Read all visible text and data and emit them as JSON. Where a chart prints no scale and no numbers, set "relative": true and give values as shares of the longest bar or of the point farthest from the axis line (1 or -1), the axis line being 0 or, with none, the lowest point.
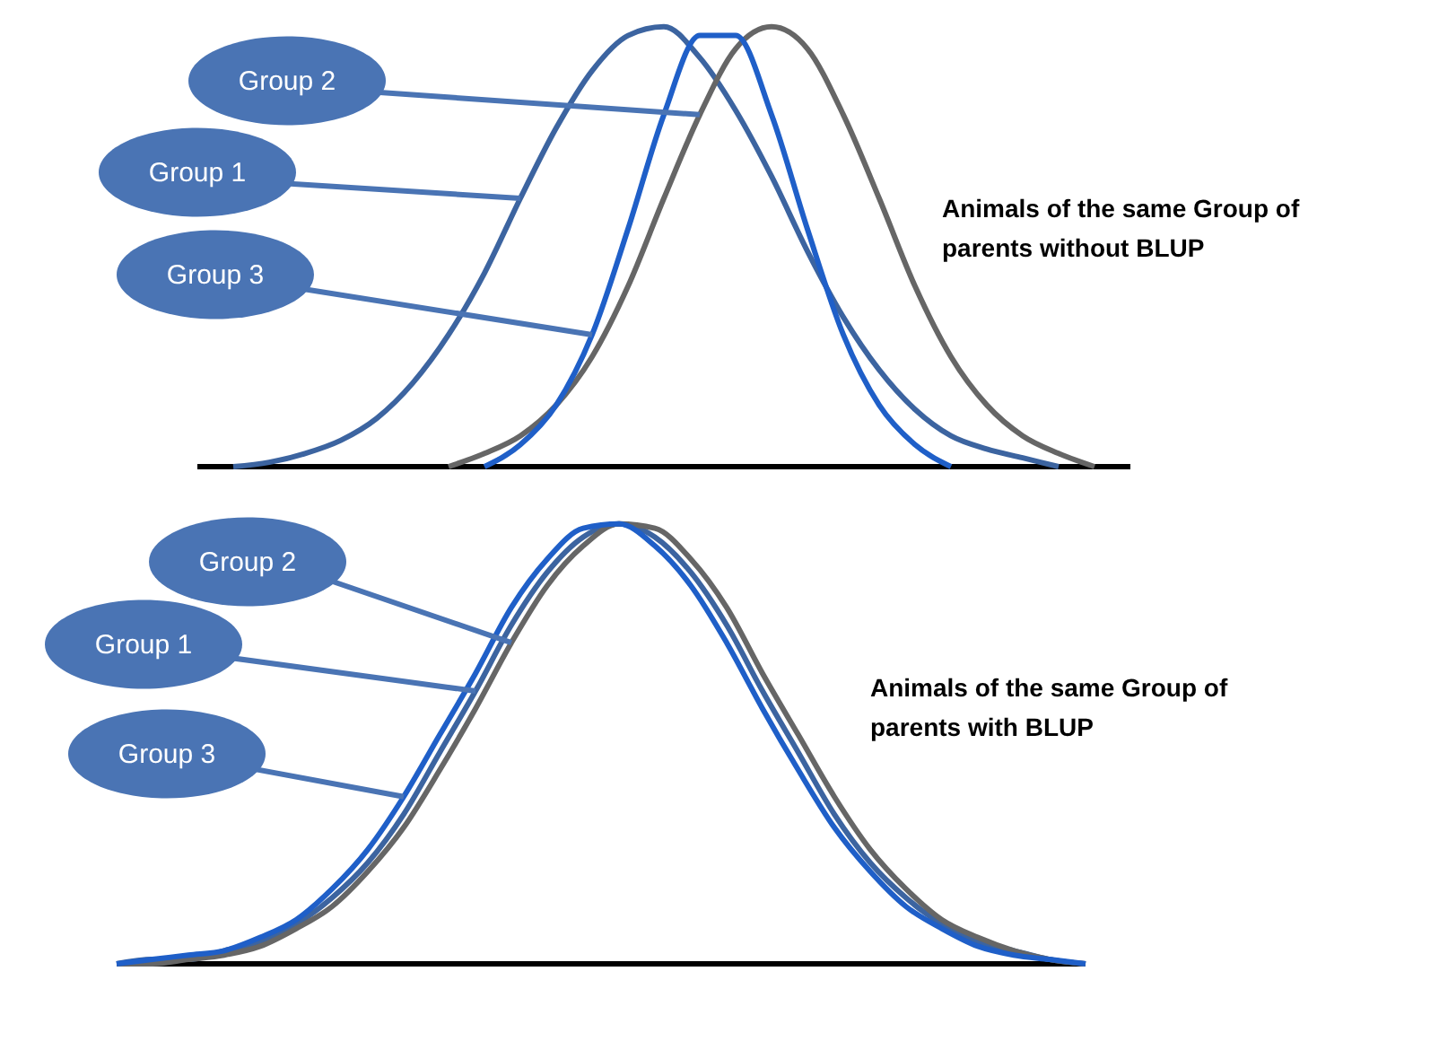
{
  "chart_data": [
    {
      "type": "line",
      "relative": true,
      "categories": [
        null,
        null,
        null,
        null,
        null,
        null,
        null,
        null,
        null,
        null,
        null,
        null,
        null,
        null,
        null,
        null,
        null,
        null,
        null,
        null,
        null,
        null,
        null,
        null,
        null,
        null,
        null
      ],
      "series": [
        {
          "name": "Group 1",
          "color": "#3c64a0",
          "values": [
            null,
            0,
            0.01,
            0.03,
            0.06,
            0.11,
            0.19,
            0.3,
            0.44,
            0.61,
            0.77,
            0.9,
            0.98,
            1,
            0.93,
            0.81,
            0.66,
            0.49,
            0.34,
            0.22,
            0.13,
            0.07,
            0.04,
            0.02,
            0,
            null,
            null
          ]
        },
        {
          "name": "Group 2",
          "color": "#666666",
          "values": [
            null,
            null,
            null,
            null,
            null,
            null,
            null,
            0,
            0.03,
            0.07,
            0.14,
            0.25,
            0.41,
            0.61,
            0.8,
            0.95,
            1,
            0.95,
            0.8,
            0.61,
            0.41,
            0.25,
            0.14,
            0.07,
            0.03,
            0,
            null
          ]
        },
        {
          "name": "Group 3",
          "color": "#1f5fc8",
          "values": [
            null,
            null,
            null,
            null,
            null,
            null,
            null,
            null,
            0,
            0.05,
            0.14,
            0.3,
            0.54,
            0.8,
            0.98,
            0.98,
            0.8,
            0.54,
            0.3,
            0.14,
            0.05,
            0,
            null,
            null,
            null,
            null,
            null
          ]
        }
      ],
      "annotations": [
        "Animals of the same Group of parents without BLUP"
      ]
    },
    {
      "type": "line",
      "relative": true,
      "categories": [
        null,
        null,
        null,
        null,
        null,
        null,
        null,
        null,
        null,
        null,
        null,
        null,
        null,
        null,
        null,
        null,
        null,
        null,
        null,
        null,
        null,
        null,
        null,
        null,
        null,
        null,
        null,
        null
      ],
      "series": [
        {
          "name": "Group 1",
          "color": "#3c64a0",
          "values": [
            0,
            0.01,
            0.01,
            0.03,
            0.05,
            0.09,
            0.15,
            0.23,
            0.34,
            0.48,
            0.62,
            0.77,
            0.89,
            0.97,
            1,
            0.97,
            0.89,
            0.77,
            0.62,
            0.48,
            0.34,
            0.23,
            0.15,
            0.09,
            0.05,
            0.03,
            0.01,
            0
          ]
        },
        {
          "name": "Group 2",
          "color": "#666666",
          "values": [
            0,
            0,
            0.01,
            0.02,
            0.04,
            0.08,
            0.13,
            0.21,
            0.31,
            0.44,
            0.58,
            0.73,
            0.86,
            0.95,
            1,
            0.99,
            0.92,
            0.81,
            0.66,
            0.52,
            0.38,
            0.26,
            0.17,
            0.1,
            0.06,
            0.03,
            0.01,
            0
          ]
        },
        {
          "name": "Group 3",
          "color": "#1f5fc8",
          "values": [
            0,
            0.01,
            0.02,
            0.03,
            0.06,
            0.1,
            0.17,
            0.26,
            0.38,
            0.52,
            0.66,
            0.81,
            0.92,
            0.99,
            1,
            0.95,
            0.86,
            0.73,
            0.58,
            0.44,
            0.31,
            0.21,
            0.13,
            0.08,
            0.04,
            0.02,
            0.01,
            0
          ]
        }
      ],
      "annotations": [
        "Animals of the same Group of parents with BLUP"
      ]
    }
  ]
}
